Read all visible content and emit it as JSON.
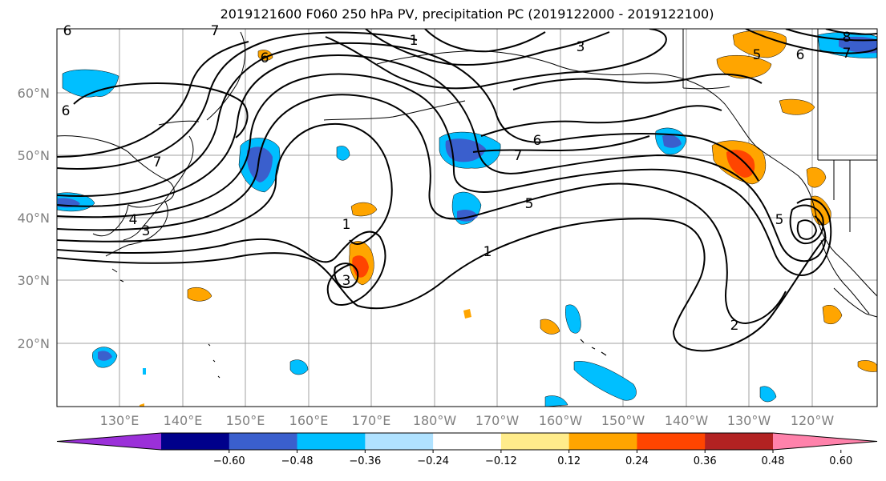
{
  "title": "2019121600 F060 250 hPa PV, precipitation PC (2019122000 - 2019122100)",
  "lat_labels": [
    "60°N",
    "50°N",
    "40°N",
    "30°N",
    "20°N"
  ],
  "lon_labels": [
    "130°E",
    "140°E",
    "150°E",
    "160°E",
    "170°E",
    "180°W",
    "170°W",
    "160°W",
    "150°W",
    "140°W",
    "130°W",
    "120°W"
  ],
  "contour_labels": [
    "1",
    "3",
    "6",
    "6",
    "6",
    "7",
    "7",
    "4",
    "3",
    "1",
    "3",
    "6",
    "7",
    "5",
    "1",
    "2",
    "5",
    "5",
    "6",
    "7",
    "8"
  ],
  "colorbar": {
    "ticks": [
      "−0.60",
      "−0.48",
      "−0.36",
      "−0.24",
      "−0.12",
      "0.12",
      "0.24",
      "0.36",
      "0.48",
      "0.60"
    ],
    "colors": [
      "#9b30d9",
      "#00008b",
      "#3a5fcd",
      "#00bfff",
      "#b0e2ff",
      "#ffffff",
      "#ffec8b",
      "#ffa500",
      "#ff4500",
      "#b22222",
      "#ff82ab"
    ]
  },
  "colors": {
    "contour": "#000000",
    "grid": "#999999",
    "coast": "#000000"
  }
}
